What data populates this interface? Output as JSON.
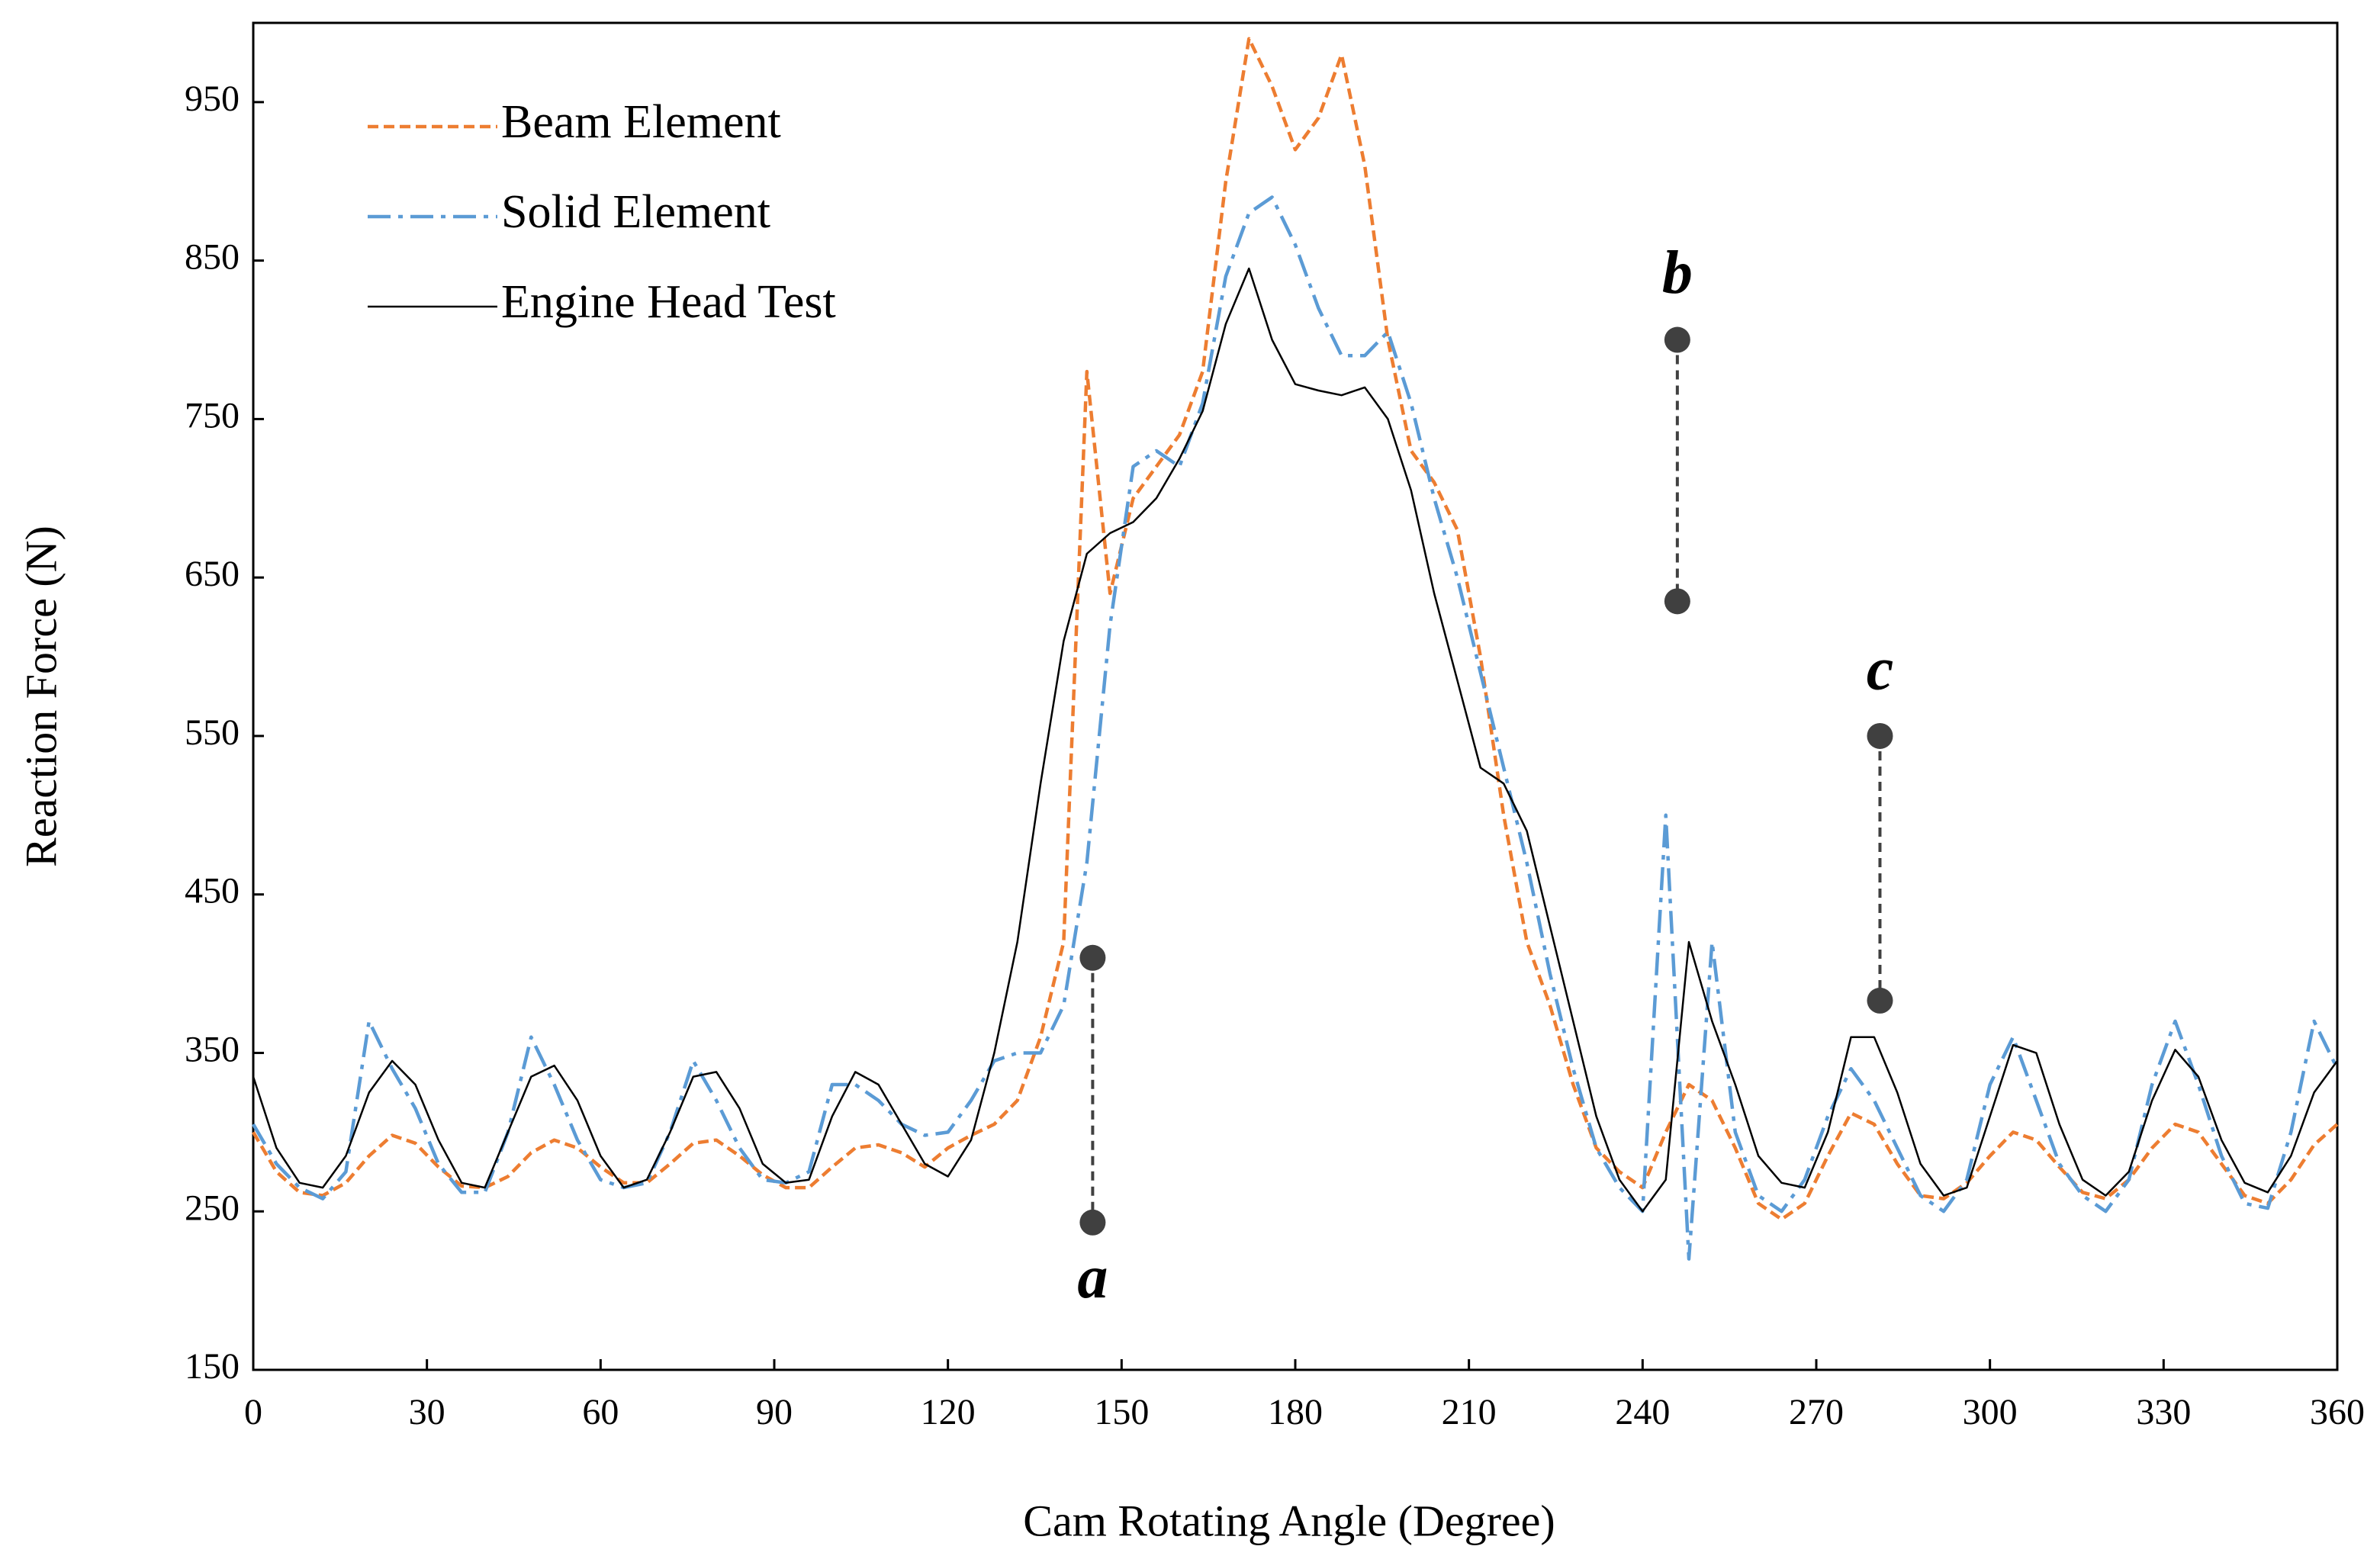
{
  "chart_data": {
    "type": "line",
    "x_label": "Cam Rotating Angle (Degree)",
    "y_label": "Reaction Force (N)",
    "xlim": [
      0,
      360
    ],
    "xticks": [
      0,
      30,
      60,
      90,
      120,
      150,
      180,
      210,
      240,
      270,
      300,
      330,
      360
    ],
    "ylim": [
      150,
      1000
    ],
    "yticks": [
      150,
      250,
      350,
      450,
      550,
      650,
      750,
      850,
      950
    ],
    "grid": false,
    "legend": "upper-left",
    "x": [
      0,
      4,
      8,
      12,
      16,
      20,
      24,
      28,
      32,
      36,
      40,
      44,
      48,
      52,
      56,
      60,
      64,
      68,
      72,
      76,
      80,
      84,
      88,
      92,
      96,
      100,
      104,
      108,
      112,
      116,
      120,
      124,
      128,
      132,
      136,
      140,
      144,
      148,
      152,
      156,
      160,
      164,
      168,
      172,
      176,
      180,
      184,
      188,
      192,
      196,
      200,
      204,
      208,
      212,
      216,
      220,
      224,
      228,
      232,
      236,
      240,
      244,
      248,
      252,
      256,
      260,
      264,
      268,
      272,
      276,
      280,
      284,
      288,
      292,
      296,
      300,
      304,
      308,
      312,
      316,
      320,
      324,
      328,
      332,
      336,
      340,
      344,
      348,
      352,
      356,
      360
    ],
    "series": [
      {
        "name": "Beam Element",
        "color": "#ed7d31",
        "dash": "dashed",
        "values": [
          300,
          275,
          262,
          260,
          268,
          285,
          298,
          293,
          278,
          266,
          265,
          272,
          287,
          295,
          290,
          278,
          268,
          268,
          280,
          293,
          295,
          285,
          273,
          265,
          265,
          278,
          290,
          292,
          287,
          278,
          290,
          298,
          305,
          320,
          360,
          420,
          780,
          640,
          700,
          720,
          740,
          780,
          900,
          990,
          960,
          920,
          940,
          980,
          910,
          800,
          730,
          710,
          680,
          600,
          500,
          420,
          380,
          330,
          290,
          275,
          265,
          300,
          330,
          320,
          290,
          255,
          245,
          255,
          285,
          312,
          305,
          280,
          260,
          258,
          268,
          285,
          300,
          295,
          278,
          262,
          258,
          270,
          290,
          305,
          300,
          280,
          260,
          255,
          270,
          292,
          305
        ]
      },
      {
        "name": "Solid Element",
        "color": "#5b9bd5",
        "dash": "dash-dot",
        "values": [
          305,
          280,
          265,
          258,
          275,
          370,
          340,
          315,
          280,
          262,
          262,
          300,
          360,
          330,
          295,
          270,
          265,
          268,
          300,
          345,
          320,
          290,
          270,
          268,
          275,
          330,
          330,
          320,
          305,
          298,
          300,
          320,
          345,
          350,
          350,
          380,
          470,
          620,
          720,
          730,
          720,
          760,
          840,
          880,
          890,
          860,
          820,
          790,
          790,
          805,
          760,
          700,
          650,
          590,
          530,
          470,
          400,
          340,
          290,
          265,
          250,
          500,
          220,
          420,
          300,
          260,
          250,
          270,
          310,
          340,
          320,
          290,
          260,
          250,
          270,
          330,
          360,
          320,
          280,
          260,
          250,
          270,
          330,
          370,
          330,
          285,
          255,
          252,
          300,
          370,
          340
        ]
      },
      {
        "name": "Engine Head Test",
        "color": "#000000",
        "dash": "solid",
        "values": [
          335,
          290,
          268,
          265,
          285,
          325,
          345,
          330,
          295,
          268,
          265,
          300,
          335,
          342,
          320,
          285,
          265,
          270,
          300,
          335,
          338,
          315,
          280,
          268,
          270,
          310,
          338,
          330,
          305,
          280,
          272,
          295,
          350,
          420,
          520,
          610,
          665,
          678,
          685,
          700,
          725,
          755,
          810,
          845,
          800,
          772,
          768,
          765,
          770,
          750,
          705,
          640,
          585,
          530,
          520,
          490,
          430,
          370,
          310,
          270,
          250,
          270,
          420,
          370,
          330,
          285,
          268,
          265,
          300,
          360,
          360,
          325,
          280,
          260,
          265,
          310,
          355,
          350,
          305,
          270,
          260,
          275,
          320,
          352,
          335,
          295,
          268,
          262,
          285,
          325,
          345
        ]
      }
    ],
    "annotations": [
      {
        "text": "a",
        "x": 145,
        "y": [
          410,
          243
        ],
        "label_position": "below"
      },
      {
        "text": "b",
        "x": 246,
        "y": [
          800,
          635
        ],
        "label_position": "above"
      },
      {
        "text": "c",
        "x": 281,
        "y": [
          550,
          383
        ],
        "label_position": "above"
      }
    ]
  }
}
